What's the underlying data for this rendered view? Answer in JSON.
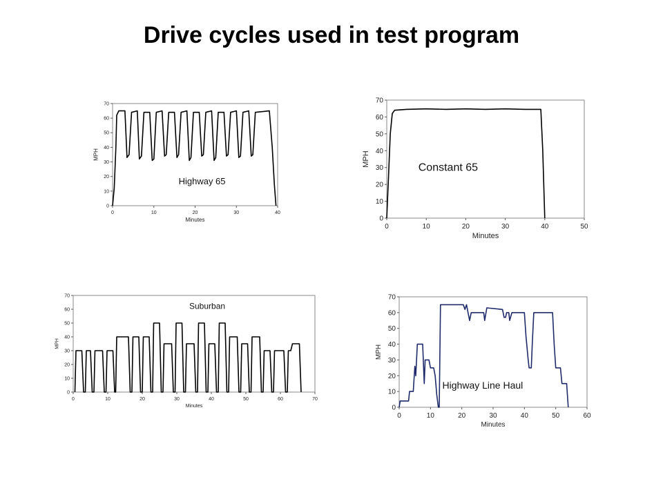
{
  "slide": {
    "title": "Drive cycles used in test program"
  },
  "chart_data": [
    {
      "type": "line",
      "annotation": "Highway 65",
      "xlabel": "Minutes",
      "ylabel": "MPH",
      "xlim": [
        0,
        40
      ],
      "ylim": [
        0,
        70
      ],
      "xticks": [
        "0",
        "10",
        "20",
        "30",
        "40"
      ],
      "yticks": [
        "0",
        "10",
        "20",
        "30",
        "40",
        "50",
        "60",
        "70"
      ],
      "color": "#000000",
      "series": [
        {
          "points": [
            [
              0,
              0
            ],
            [
              0.4,
              12
            ],
            [
              0.8,
              40
            ],
            [
              1.0,
              62
            ],
            [
              1.5,
              65
            ],
            [
              3,
              65
            ],
            [
              3.5,
              33
            ],
            [
              4,
              35
            ],
            [
              4.6,
              64
            ],
            [
              6,
              65
            ],
            [
              6.5,
              32
            ],
            [
              7,
              34
            ],
            [
              7.6,
              64
            ],
            [
              9,
              64
            ],
            [
              9.6,
              31
            ],
            [
              10,
              32
            ],
            [
              10.6,
              64
            ],
            [
              12,
              65
            ],
            [
              12.6,
              34
            ],
            [
              13,
              35
            ],
            [
              13.6,
              64
            ],
            [
              15,
              64
            ],
            [
              15.6,
              33
            ],
            [
              16,
              35
            ],
            [
              16.6,
              64
            ],
            [
              18,
              65
            ],
            [
              18.6,
              31
            ],
            [
              19,
              33
            ],
            [
              19.6,
              64
            ],
            [
              21,
              64
            ],
            [
              21.6,
              34
            ],
            [
              22,
              35
            ],
            [
              22.6,
              64
            ],
            [
              24,
              65
            ],
            [
              24.6,
              31
            ],
            [
              25,
              33
            ],
            [
              25.6,
              64
            ],
            [
              27,
              64
            ],
            [
              27.6,
              34
            ],
            [
              28,
              35
            ],
            [
              28.6,
              64
            ],
            [
              30,
              65
            ],
            [
              30.6,
              33
            ],
            [
              31,
              34
            ],
            [
              31.6,
              64
            ],
            [
              33,
              65
            ],
            [
              33.6,
              34
            ],
            [
              34,
              35
            ],
            [
              34.6,
              64
            ],
            [
              38,
              65
            ],
            [
              38.7,
              40
            ],
            [
              39.2,
              15
            ],
            [
              39.6,
              0
            ]
          ]
        }
      ]
    },
    {
      "type": "line",
      "annotation": "Constant 65",
      "xlabel": "Minutes",
      "ylabel": "MPH",
      "xlim": [
        0,
        50
      ],
      "ylim": [
        0,
        70
      ],
      "xticks": [
        "0",
        "10",
        "20",
        "30",
        "40",
        "50"
      ],
      "yticks": [
        "0",
        "10",
        "20",
        "30",
        "40",
        "50",
        "60",
        "70"
      ],
      "color": "#000000",
      "series": [
        {
          "points": [
            [
              0,
              0
            ],
            [
              0.4,
              22
            ],
            [
              0.9,
              50
            ],
            [
              1.4,
              62
            ],
            [
              2,
              64
            ],
            [
              5,
              64.5
            ],
            [
              10,
              64.8
            ],
            [
              15,
              64.5
            ],
            [
              20,
              64.8
            ],
            [
              25,
              64.5
            ],
            [
              30,
              64.8
            ],
            [
              35,
              64.5
            ],
            [
              39,
              64.5
            ],
            [
              39.5,
              40
            ],
            [
              39.8,
              15
            ],
            [
              40,
              0
            ]
          ]
        }
      ]
    },
    {
      "type": "line",
      "annotation": "Suburban",
      "xlabel": "Minutes",
      "ylabel": "MPH",
      "xlim": [
        0,
        70
      ],
      "ylim": [
        0,
        70
      ],
      "xticks": [
        "0",
        "10",
        "20",
        "30",
        "40",
        "50",
        "60",
        "70"
      ],
      "yticks": [
        "0",
        "10",
        "20",
        "30",
        "40",
        "50",
        "60",
        "70"
      ],
      "color": "#000000",
      "series": [
        {
          "points": [
            [
              0.5,
              0
            ],
            [
              0.8,
              30
            ],
            [
              2.5,
              30
            ],
            [
              3,
              0
            ],
            [
              3.5,
              0
            ],
            [
              3.8,
              30
            ],
            [
              5,
              30
            ],
            [
              5.5,
              0
            ],
            [
              6,
              0
            ],
            [
              6.3,
              30
            ],
            [
              8.5,
              30
            ],
            [
              9,
              0
            ],
            [
              9.5,
              0
            ],
            [
              9.8,
              30
            ],
            [
              11.5,
              30
            ],
            [
              12,
              0
            ],
            [
              12.3,
              0
            ],
            [
              12.6,
              40
            ],
            [
              16,
              40
            ],
            [
              16.5,
              0
            ],
            [
              17,
              0
            ],
            [
              17.3,
              40
            ],
            [
              19,
              40
            ],
            [
              19.5,
              0
            ],
            [
              20,
              0
            ],
            [
              20.3,
              40
            ],
            [
              22,
              40
            ],
            [
              22.5,
              0
            ],
            [
              23,
              0
            ],
            [
              23.3,
              50
            ],
            [
              25,
              50
            ],
            [
              25.5,
              0
            ],
            [
              26,
              0
            ],
            [
              26.3,
              35
            ],
            [
              28.5,
              35
            ],
            [
              29,
              0
            ],
            [
              29.5,
              0
            ],
            [
              29.8,
              50
            ],
            [
              31.5,
              50
            ],
            [
              32,
              0
            ],
            [
              32.5,
              0
            ],
            [
              32.8,
              35
            ],
            [
              35,
              35
            ],
            [
              35.5,
              0
            ],
            [
              36,
              0
            ],
            [
              36.3,
              50
            ],
            [
              38,
              50
            ],
            [
              38.5,
              0
            ],
            [
              39,
              0
            ],
            [
              39.3,
              35
            ],
            [
              41,
              35
            ],
            [
              41.5,
              0
            ],
            [
              42,
              0
            ],
            [
              42.3,
              50
            ],
            [
              44,
              50
            ],
            [
              44.5,
              0
            ],
            [
              45,
              0
            ],
            [
              45.3,
              40
            ],
            [
              47.5,
              40
            ],
            [
              48,
              0
            ],
            [
              48.5,
              0
            ],
            [
              48.8,
              35
            ],
            [
              50.5,
              35
            ],
            [
              51,
              0
            ],
            [
              51.5,
              0
            ],
            [
              51.8,
              40
            ],
            [
              54,
              40
            ],
            [
              54.5,
              0
            ],
            [
              55,
              0
            ],
            [
              55.3,
              30
            ],
            [
              57,
              30
            ],
            [
              57.5,
              0
            ],
            [
              58,
              0
            ],
            [
              58.3,
              30
            ],
            [
              61,
              30
            ],
            [
              61.5,
              0
            ],
            [
              62,
              0
            ],
            [
              62.3,
              30
            ],
            [
              63,
              30
            ],
            [
              63.5,
              35
            ],
            [
              65.5,
              35
            ],
            [
              66,
              0
            ]
          ]
        }
      ]
    },
    {
      "type": "line",
      "annotation": "Highway Line Haul",
      "xlabel": "Minutes",
      "ylabel": "MPH",
      "xlim": [
        0,
        60
      ],
      "ylim": [
        0,
        70
      ],
      "xticks": [
        "0",
        "10",
        "20",
        "30",
        "40",
        "50",
        "60"
      ],
      "yticks": [
        "0",
        "10",
        "20",
        "30",
        "40",
        "50",
        "60",
        "70"
      ],
      "color": "#1f2a6b",
      "series": [
        {
          "points": [
            [
              0,
              0
            ],
            [
              0.3,
              4
            ],
            [
              3,
              4
            ],
            [
              3.3,
              10
            ],
            [
              4.5,
              10
            ],
            [
              5,
              26
            ],
            [
              5.3,
              20
            ],
            [
              5.8,
              40
            ],
            [
              7.5,
              40
            ],
            [
              8,
              15
            ],
            [
              8.3,
              30
            ],
            [
              9.5,
              30
            ],
            [
              10,
              25
            ],
            [
              11,
              25
            ],
            [
              11.5,
              20
            ],
            [
              12,
              8
            ],
            [
              12.5,
              0
            ],
            [
              12.8,
              0
            ],
            [
              13.2,
              65
            ],
            [
              20.5,
              65
            ],
            [
              21,
              62
            ],
            [
              21.5,
              65
            ],
            [
              22,
              60
            ],
            [
              22.5,
              55
            ],
            [
              23,
              60
            ],
            [
              27,
              60
            ],
            [
              27.3,
              55
            ],
            [
              28,
              63
            ],
            [
              33,
              62
            ],
            [
              33.5,
              57
            ],
            [
              34,
              57
            ],
            [
              34.3,
              60
            ],
            [
              35,
              60
            ],
            [
              35.3,
              55
            ],
            [
              36,
              60
            ],
            [
              40,
              60
            ],
            [
              40.5,
              45
            ],
            [
              41.2,
              30
            ],
            [
              41.5,
              25
            ],
            [
              42.2,
              25
            ],
            [
              42.5,
              40
            ],
            [
              43,
              60
            ],
            [
              49,
              60
            ],
            [
              49.5,
              40
            ],
            [
              50,
              25
            ],
            [
              51.5,
              25
            ],
            [
              52,
              15
            ],
            [
              53.5,
              15
            ],
            [
              54,
              0
            ]
          ]
        }
      ]
    }
  ]
}
